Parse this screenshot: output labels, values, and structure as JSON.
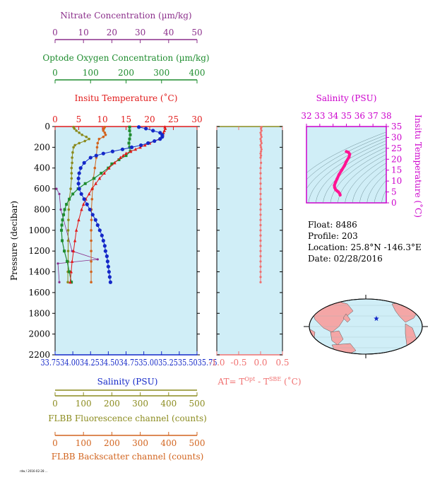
{
  "colors": {
    "nitrate": "#8b2f8b",
    "oxygen": "#1e8c2e",
    "temperature": "#e11a1a",
    "salinity": "#1428c8",
    "fluorescence": "#8b8b1e",
    "backscatter": "#d2641e",
    "salinity_panel": "#cc00cc",
    "at": "#f07070",
    "plot_bg": "#d0eef7",
    "ts_curve": "#ff1493"
  },
  "info": {
    "float": "Float:  8486",
    "profile": "Profile:  203",
    "location": "Location:  25.8°N  -146.3°E",
    "date": "Date:  02/28/2016"
  },
  "footnote": "rdw / 2016-02-28 ...",
  "map": {
    "marker_lat": 25.8,
    "marker_lon": -146.3
  },
  "chart_data": [
    {
      "type": "line",
      "panel": "main_profile",
      "y_label": "Pressure (decibar)",
      "y_ticks": [
        "0",
        "200",
        "400",
        "600",
        "800",
        "1000",
        "1200",
        "1400",
        "1600",
        "1800",
        "2000",
        "2200"
      ],
      "ylim": [
        2200,
        0
      ],
      "axes": {
        "nitrate": {
          "label": "Nitrate Concentration (µm/kg)",
          "ticks": [
            "0",
            "10",
            "20",
            "30",
            "40",
            "50"
          ],
          "range": [
            0,
            50
          ],
          "position": "top"
        },
        "oxygen": {
          "label": "Optode Oxygen Concentration (µm/kg)",
          "ticks": [
            "0",
            "100",
            "200",
            "300",
            "400"
          ],
          "range": [
            0,
            400
          ],
          "position": "top"
        },
        "temperature": {
          "label": "Insitu Temperature (˚C)",
          "ticks": [
            "0",
            "5",
            "10",
            "15",
            "20",
            "25",
            "30"
          ],
          "range": [
            0,
            30
          ],
          "position": "top"
        },
        "salinity": {
          "label": "Salinity (PSU)",
          "ticks": [
            "33.75",
            "34.00",
            "34.25",
            "34.50",
            "34.75",
            "35.00",
            "35.25",
            "35.50",
            "35.75"
          ],
          "range": [
            33.75,
            35.75
          ],
          "position": "bottom",
          "tick_text": "33.7534.0034.2534.5034.7535.0035.2535.5035.75"
        },
        "fluorescence": {
          "label": "FLBB Fluorescence channel (counts)",
          "ticks": [
            "0",
            "100",
            "200",
            "300",
            "400",
            "500"
          ],
          "range": [
            0,
            500
          ],
          "position": "bottom"
        },
        "backscatter": {
          "label": "FLBB Backscatter channel (counts)",
          "ticks": [
            "0",
            "100",
            "200",
            "300",
            "400",
            "500"
          ],
          "range": [
            0,
            500
          ],
          "position": "bottom"
        }
      },
      "series": [
        {
          "key": "temperature",
          "points": [
            [
              5,
              23.2
            ],
            [
              20,
              23.3
            ],
            [
              40,
              23.1
            ],
            [
              60,
              22.9
            ],
            [
              80,
              22.8
            ],
            [
              100,
              22.6
            ],
            [
              120,
              22.0
            ],
            [
              140,
              21.0
            ],
            [
              160,
              20.0
            ],
            [
              180,
              19.0
            ],
            [
              200,
              18.0
            ],
            [
              220,
              17.0
            ],
            [
              240,
              16.0
            ],
            [
              260,
              15.0
            ],
            [
              280,
              14.4
            ],
            [
              300,
              13.8
            ],
            [
              350,
              12.6
            ],
            [
              400,
              11.4
            ],
            [
              450,
              10.4
            ],
            [
              500,
              9.4
            ],
            [
              550,
              8.6
            ],
            [
              600,
              7.8
            ],
            [
              650,
              7.2
            ],
            [
              700,
              6.5
            ],
            [
              750,
              6.0
            ],
            [
              800,
              5.6
            ],
            [
              900,
              5.0
            ],
            [
              1000,
              4.5
            ],
            [
              1100,
              4.2
            ],
            [
              1200,
              3.9
            ],
            [
              1300,
              3.6
            ],
            [
              1400,
              3.4
            ],
            [
              1500,
              3.2
            ]
          ]
        },
        {
          "key": "salinity",
          "points": [
            [
              5,
              34.93
            ],
            [
              20,
              35.03
            ],
            [
              40,
              35.13
            ],
            [
              60,
              35.23
            ],
            [
              80,
              35.26
            ],
            [
              100,
              35.26
            ],
            [
              120,
              35.23
            ],
            [
              140,
              35.15
            ],
            [
              160,
              35.06
            ],
            [
              180,
              34.96
            ],
            [
              200,
              34.83
            ],
            [
              220,
              34.7
            ],
            [
              240,
              34.56
            ],
            [
              260,
              34.43
            ],
            [
              280,
              34.33
            ],
            [
              300,
              34.25
            ],
            [
              350,
              34.16
            ],
            [
              400,
              34.11
            ],
            [
              450,
              34.09
            ],
            [
              500,
              34.08
            ],
            [
              550,
              34.08
            ],
            [
              600,
              34.09
            ],
            [
              650,
              34.12
            ],
            [
              700,
              34.16
            ],
            [
              750,
              34.2
            ],
            [
              800,
              34.24
            ],
            [
              850,
              34.28
            ],
            [
              900,
              34.32
            ],
            [
              950,
              34.35
            ],
            [
              1000,
              34.38
            ],
            [
              1050,
              34.41
            ],
            [
              1100,
              34.43
            ],
            [
              1150,
              34.45
            ],
            [
              1200,
              34.46
            ],
            [
              1250,
              34.48
            ],
            [
              1300,
              34.49
            ],
            [
              1350,
              34.5
            ],
            [
              1400,
              34.51
            ],
            [
              1450,
              34.52
            ],
            [
              1500,
              34.53
            ]
          ]
        },
        {
          "key": "oxygen",
          "points": [
            [
              5,
              210
            ],
            [
              40,
              210
            ],
            [
              80,
              212
            ],
            [
              120,
              210
            ],
            [
              160,
              208
            ],
            [
              200,
              210
            ],
            [
              240,
              212
            ],
            [
              280,
              200
            ],
            [
              320,
              180
            ],
            [
              360,
              160
            ],
            [
              400,
              150
            ],
            [
              450,
              130
            ],
            [
              500,
              110
            ],
            [
              550,
              85
            ],
            [
              600,
              65
            ],
            [
              650,
              50
            ],
            [
              700,
              40
            ],
            [
              750,
              32
            ],
            [
              800,
              27
            ],
            [
              850,
              24
            ],
            [
              900,
              21
            ],
            [
              950,
              19
            ],
            [
              1000,
              18
            ],
            [
              1100,
              20
            ],
            [
              1200,
              26
            ],
            [
              1300,
              34
            ],
            [
              1400,
              40
            ],
            [
              1500,
              46
            ]
          ]
        },
        {
          "key": "nitrate",
          "points": [
            [
              600,
              0.5
            ],
            [
              650,
              1.5
            ],
            [
              800,
              2.0
            ],
            [
              1200,
              6.0
            ],
            [
              1280,
              15.0
            ],
            [
              1320,
              1.0
            ],
            [
              1500,
              1.5
            ]
          ]
        },
        {
          "key": "fluorescence",
          "points": [
            [
              5,
              65
            ],
            [
              20,
              68
            ],
            [
              40,
              75
            ],
            [
              60,
              85
            ],
            [
              80,
              95
            ],
            [
              100,
              110
            ],
            [
              120,
              120
            ],
            [
              140,
              105
            ],
            [
              160,
              85
            ],
            [
              180,
              70
            ],
            [
              200,
              65
            ],
            [
              250,
              62
            ],
            [
              300,
              60
            ],
            [
              350,
              60
            ],
            [
              400,
              58
            ],
            [
              450,
              58
            ],
            [
              500,
              58
            ],
            [
              600,
              55
            ],
            [
              700,
              50
            ],
            [
              800,
              48
            ],
            [
              900,
              47
            ],
            [
              1000,
              46
            ],
            [
              1100,
              46
            ],
            [
              1200,
              46
            ],
            [
              1300,
              46
            ],
            [
              1400,
              45
            ],
            [
              1500,
              45
            ]
          ]
        },
        {
          "key": "backscatter",
          "points": [
            [
              5,
              175
            ],
            [
              20,
              172
            ],
            [
              40,
              170
            ],
            [
              60,
              175
            ],
            [
              80,
              178
            ],
            [
              100,
              170
            ],
            [
              120,
              155
            ],
            [
              160,
              150
            ],
            [
              200,
              148
            ],
            [
              300,
              145
            ],
            [
              400,
              140
            ],
            [
              500,
              135
            ],
            [
              600,
              132
            ],
            [
              700,
              130
            ],
            [
              800,
              128
            ],
            [
              900,
              128
            ],
            [
              1000,
              127
            ],
            [
              1100,
              127
            ],
            [
              1200,
              127
            ],
            [
              1300,
              127
            ],
            [
              1400,
              127
            ],
            [
              1500,
              127
            ]
          ]
        }
      ]
    },
    {
      "type": "scatter",
      "panel": "at_panel",
      "xlabel": "AT= T^Opt - T^SBE (˚C)",
      "xlabel_main": "AT= T",
      "xlabel_sup1": "Opt",
      "xlabel_mid": " - T",
      "xlabel_sup2": "SBE",
      "xlabel_end": " (˚C)",
      "x_ticks": [
        "-1.0",
        "-0.5",
        "0.0",
        "0.5"
      ],
      "xlim": [
        -1.0,
        0.5
      ],
      "ylim": [
        2200,
        0
      ],
      "points": [
        [
          5,
          0.02
        ],
        [
          20,
          0.01
        ],
        [
          40,
          0.02
        ],
        [
          60,
          0.0
        ],
        [
          80,
          0.01
        ],
        [
          100,
          0.02
        ],
        [
          120,
          0.0
        ],
        [
          140,
          0.01
        ],
        [
          160,
          0.02
        ],
        [
          180,
          0.0
        ],
        [
          200,
          0.01
        ],
        [
          220,
          0.02
        ],
        [
          240,
          0.01
        ],
        [
          260,
          0.0
        ],
        [
          280,
          0.01
        ],
        [
          300,
          0.0
        ],
        [
          350,
          0.01
        ],
        [
          400,
          0.0
        ],
        [
          450,
          0.0
        ],
        [
          500,
          0.0
        ],
        [
          550,
          0.0
        ],
        [
          600,
          0.0
        ],
        [
          650,
          0.0
        ],
        [
          700,
          0.0
        ],
        [
          750,
          0.0
        ],
        [
          800,
          0.0
        ],
        [
          850,
          0.0
        ],
        [
          900,
          0.0
        ],
        [
          950,
          0.0
        ],
        [
          1000,
          0.0
        ],
        [
          1050,
          0.0
        ],
        [
          1100,
          0.0
        ],
        [
          1150,
          0.0
        ],
        [
          1200,
          0.0
        ],
        [
          1250,
          0.0
        ],
        [
          1300,
          0.0
        ],
        [
          1350,
          0.0
        ],
        [
          1400,
          0.0
        ],
        [
          1450,
          0.0
        ],
        [
          1500,
          0.0
        ]
      ]
    },
    {
      "type": "line",
      "panel": "ts_panel",
      "title": "Salinity (PSU)",
      "ylabel": "Insitu Temperature (˚C)",
      "x_ticks": [
        "32",
        "33",
        "34",
        "35",
        "36",
        "37",
        "38"
      ],
      "xlim": [
        32,
        38
      ],
      "y_ticks": [
        "0",
        "5",
        "10",
        "15",
        "20",
        "25",
        "30",
        "35"
      ],
      "ylim": [
        0,
        35
      ],
      "points": [
        [
          35.0,
          23.5
        ],
        [
          35.15,
          23.2
        ],
        [
          35.25,
          22.3
        ],
        [
          35.2,
          21.0
        ],
        [
          35.0,
          19.0
        ],
        [
          34.85,
          17.0
        ],
        [
          34.65,
          15.0
        ],
        [
          34.45,
          13.0
        ],
        [
          34.3,
          11.0
        ],
        [
          34.18,
          9.4
        ],
        [
          34.1,
          8.0
        ],
        [
          34.12,
          7.0
        ],
        [
          34.2,
          6.0
        ],
        [
          34.3,
          5.5
        ],
        [
          34.4,
          5.0
        ],
        [
          34.5,
          4.2
        ],
        [
          34.53,
          3.6
        ]
      ]
    }
  ]
}
